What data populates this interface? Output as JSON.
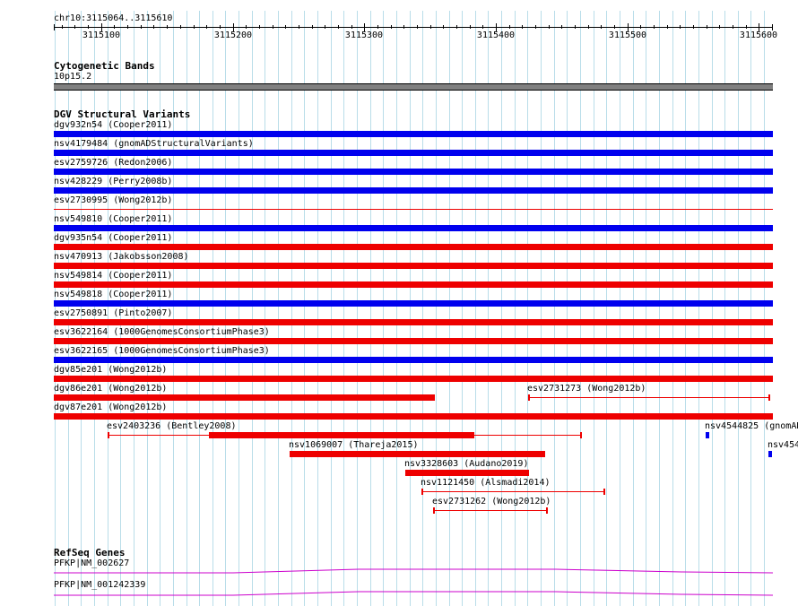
{
  "position": "chr10:3115064..3115610",
  "ruler": {
    "start": 3115064,
    "end": 3115610,
    "labels": [
      "3115100",
      "3115200",
      "3115300",
      "3115400",
      "3115500",
      "3115600"
    ]
  },
  "cytoband": {
    "title": "Cytogenetic Bands",
    "band_label": "10p15.2",
    "band_color": "#808080"
  },
  "dgv": {
    "title": "DGV Structural Variants",
    "colors": {
      "blue": "#0000ee",
      "red": "#ee0000"
    },
    "full_rows": [
      {
        "label": "dgv932n54 (Cooper2011)",
        "color": "blue"
      },
      {
        "label": "nsv4179484 (gnomADStructuralVariants)",
        "color": "blue"
      },
      {
        "label": "esv2759726 (Redon2006)",
        "color": "blue"
      },
      {
        "label": "nsv428229 (Perry2008b)",
        "color": "blue"
      },
      {
        "label": "esv2730995 (Wong2012b)",
        "color": "red",
        "style": "thin"
      },
      {
        "label": "nsv549810 (Cooper2011)",
        "color": "blue"
      },
      {
        "label": "dgv935n54 (Cooper2011)",
        "color": "red"
      },
      {
        "label": "nsv470913 (Jakobsson2008)",
        "color": "red"
      },
      {
        "label": "nsv549814 (Cooper2011)",
        "color": "red"
      },
      {
        "label": "nsv549818 (Cooper2011)",
        "color": "blue"
      },
      {
        "label": "esv2750891 (Pinto2007)",
        "color": "red"
      },
      {
        "label": "esv3622164 (1000GenomesConsortiumPhase3)",
        "color": "red"
      },
      {
        "label": "esv3622165 (1000GenomesConsortiumPhase3)",
        "color": "blue"
      },
      {
        "label": "dgv85e201 (Wong2012b)",
        "color": "red"
      }
    ],
    "dgv86": {
      "label": "dgv86e201 (Wong2012b)",
      "color": "red"
    },
    "esv2731273": {
      "label": "esv2731273 (Wong2012b)",
      "color": "red"
    },
    "dgv87": {
      "label": "dgv87e201 (Wong2012b)",
      "color": "red"
    },
    "esv2403236": {
      "label": "esv2403236 (Bentley2008)",
      "color": "red"
    },
    "nsv4544825": {
      "label": "nsv4544825 (gnomAD",
      "color": "blue"
    },
    "nsv1069007": {
      "label": "nsv1069007 (Thareja2015)",
      "color": "red"
    },
    "nsv454x": {
      "label": "nsv454",
      "color": "blue"
    },
    "nsv3328603": {
      "label": "nsv3328603 (Audano2019)",
      "color": "red"
    },
    "nsv1121450": {
      "label": "nsv1121450 (Alsmadi2014)",
      "color": "red"
    },
    "esv2731262": {
      "label": "esv2731262 (Wong2012b)",
      "color": "red"
    }
  },
  "refseq": {
    "title": "RefSeq Genes",
    "genes": [
      {
        "label": "PFKP|NM_002627",
        "color": "#cc00cc"
      },
      {
        "label": "PFKP|NM_001242339",
        "color": "#cc00cc"
      }
    ]
  }
}
